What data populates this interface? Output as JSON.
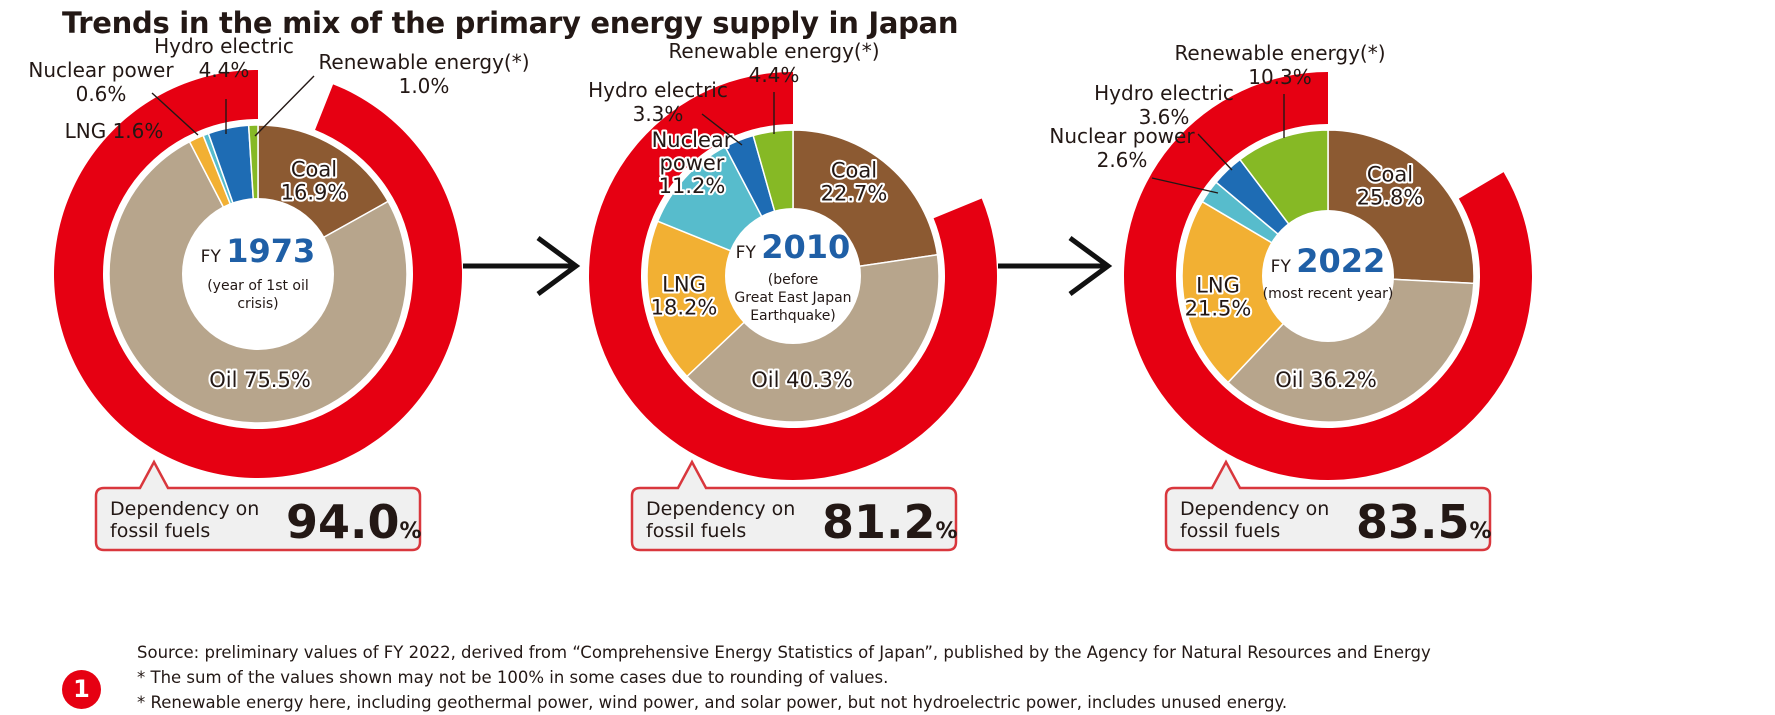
{
  "title": "Trends in the mix of the primary energy supply in Japan",
  "chart_data": [
    {
      "type": "pie",
      "fy_prefix": "FY",
      "year": "1973",
      "subtitle": [
        "(year of 1st oil",
        "crisis)"
      ],
      "dependency_label": [
        "Dependency on",
        "fossil fuels"
      ],
      "dependency_value": "94.0",
      "dependency_unit": "%",
      "dependency_pct": 94.0,
      "segments": [
        {
          "name": "Coal",
          "value": 16.9,
          "label": [
            "Coal",
            "16.9%"
          ],
          "color": "#8c5a32"
        },
        {
          "name": "Oil",
          "value": 75.5,
          "label": [
            "Oil 75.5%"
          ],
          "color": "#b7a58c"
        },
        {
          "name": "LNG",
          "value": 1.6,
          "label": [
            "LNG 1.6%"
          ],
          "color": "#f2b033"
        },
        {
          "name": "Nuclear power",
          "value": 0.6,
          "label": [
            "Nuclear power",
            "0.6%"
          ],
          "color": "#57bccc"
        },
        {
          "name": "Hydro electric",
          "value": 4.4,
          "label": [
            "Hydro electric",
            "4.4%"
          ],
          "color": "#1e6cb4"
        },
        {
          "name": "Renewable energy(*)",
          "value": 1.0,
          "label": [
            "Renewable energy(*)",
            "1.0%"
          ],
          "color": "#86b925"
        }
      ]
    },
    {
      "type": "pie",
      "fy_prefix": "FY",
      "year": "2010",
      "subtitle": [
        "(before",
        "Great East Japan",
        "Earthquake)"
      ],
      "dependency_label": [
        "Dependency on",
        "fossil fuels"
      ],
      "dependency_value": "81.2",
      "dependency_unit": "%",
      "dependency_pct": 81.2,
      "segments": [
        {
          "name": "Coal",
          "value": 22.7,
          "label": [
            "Coal",
            "22.7%"
          ],
          "color": "#8c5a32"
        },
        {
          "name": "Oil",
          "value": 40.3,
          "label": [
            "Oil 40.3%"
          ],
          "color": "#b7a58c"
        },
        {
          "name": "LNG",
          "value": 18.2,
          "label": [
            "LNG",
            "18.2%"
          ],
          "color": "#f2b033"
        },
        {
          "name": "Nuclear power",
          "value": 11.2,
          "label": [
            "Nuclear",
            "power",
            "11.2%"
          ],
          "color": "#57bccc"
        },
        {
          "name": "Hydro electric",
          "value": 3.3,
          "label": [
            "Hydro electric",
            "3.3%"
          ],
          "color": "#1e6cb4"
        },
        {
          "name": "Renewable energy(*)",
          "value": 4.4,
          "label": [
            "Renewable energy(*)",
            "4.4%"
          ],
          "color": "#86b925"
        }
      ]
    },
    {
      "type": "pie",
      "fy_prefix": "FY",
      "year": "2022",
      "subtitle": [
        "(most recent year)"
      ],
      "dependency_label": [
        "Dependency on",
        "fossil fuels"
      ],
      "dependency_value": "83.5",
      "dependency_unit": "%",
      "dependency_pct": 83.5,
      "segments": [
        {
          "name": "Coal",
          "value": 25.8,
          "label": [
            "Coal",
            "25.8%"
          ],
          "color": "#8c5a32"
        },
        {
          "name": "Oil",
          "value": 36.2,
          "label": [
            "Oil 36.2%"
          ],
          "color": "#b7a58c"
        },
        {
          "name": "LNG",
          "value": 21.5,
          "label": [
            "LNG",
            "21.5%"
          ],
          "color": "#f2b033"
        },
        {
          "name": "Nuclear power",
          "value": 2.6,
          "label": [
            "Nuclear power",
            "2.6%"
          ],
          "color": "#57bccc"
        },
        {
          "name": "Hydro electric",
          "value": 3.6,
          "label": [
            "Hydro electric",
            "3.6%"
          ],
          "color": "#1e6cb4"
        },
        {
          "name": "Renewable energy(*)",
          "value": 10.3,
          "label": [
            "Renewable energy(*)",
            "10.3%"
          ],
          "color": "#86b925"
        }
      ]
    }
  ],
  "colors": {
    "accent_red": "#e60012",
    "year_blue": "#1f5fa6",
    "callout_border": "#d9373d",
    "callout_fill": "#f0f0f0"
  },
  "notes": [
    "Source: preliminary values of FY 2022, derived from “Comprehensive Energy Statistics of Japan”, published by the Agency for Natural Resources and Energy",
    "* The sum of the values shown may not be 100% in some cases due to rounding of values.",
    "* Renewable energy here, including geothermal power, wind power, and solar power, but not hydroelectric power, includes unused energy."
  ],
  "badge": "1"
}
